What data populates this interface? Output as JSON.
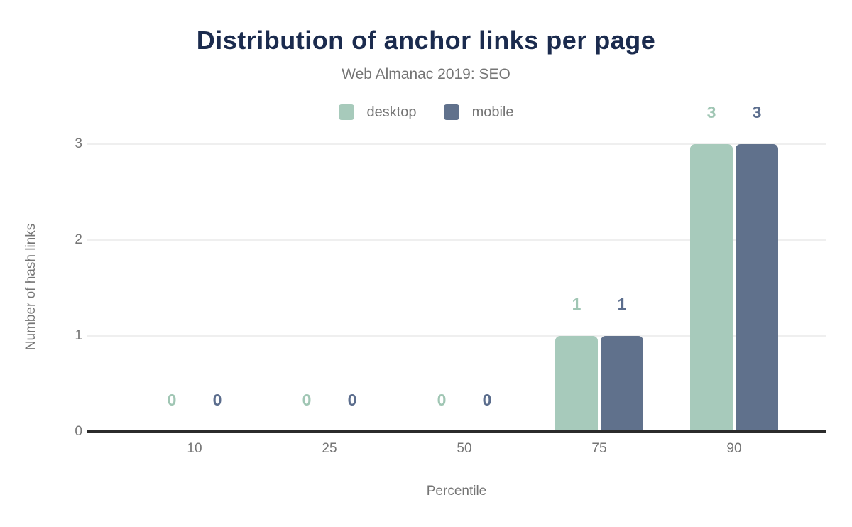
{
  "page": {
    "background_color": "#ffffff"
  },
  "chart_data": {
    "type": "bar",
    "title": "Distribution of anchor links per page",
    "subtitle": "Web Almanac 2019: SEO",
    "categories": [
      "10",
      "25",
      "50",
      "75",
      "90"
    ],
    "series": [
      {
        "name": "desktop",
        "color": "#a7cabb",
        "label_color": "#a0c6b4",
        "values": [
          0,
          0,
          0,
          1,
          3
        ]
      },
      {
        "name": "mobile",
        "color": "#60718c",
        "label_color": "#5b6d8d",
        "values": [
          0,
          0,
          0,
          1,
          3
        ]
      }
    ],
    "xlabel": "Percentile",
    "ylabel": "Number of hash links",
    "y_ticks": [
      0,
      1,
      2,
      3
    ],
    "ylim": [
      0,
      3
    ],
    "grid": true,
    "legend_position": "top",
    "colors": {
      "title_text": "#1b2b4e",
      "subtitle_text": "#757575",
      "axis_text": "#757575",
      "legend_text": "#757575",
      "gridline": "#efefef",
      "baseline": "#2b2b2b"
    }
  }
}
